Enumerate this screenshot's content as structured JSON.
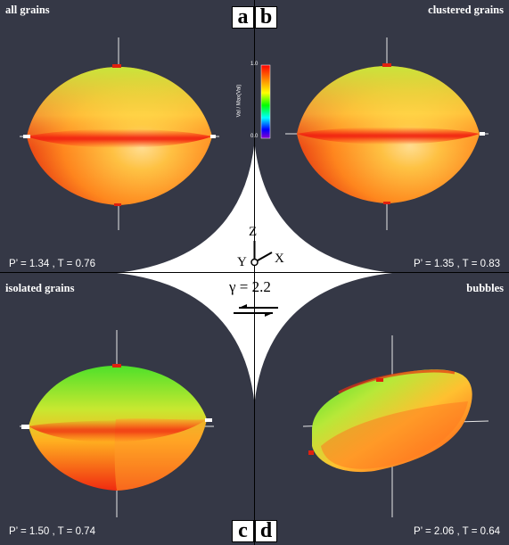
{
  "panels": {
    "a": {
      "letter": "a",
      "title": "all grains",
      "stats": "P’ = 1.34 , T = 0.76"
    },
    "b": {
      "letter": "b",
      "title": "clustered grains",
      "stats": "P’ = 1.35 , T = 0.83"
    },
    "c": {
      "letter": "c",
      "title": "isolated grains",
      "stats": "P’ = 1.50 , T = 0.74"
    },
    "d": {
      "letter": "d",
      "title": "bubbles",
      "stats": "P’ = 2.06 , T = 0.64"
    }
  },
  "colorbar": {
    "max_label": "1.0",
    "min_label": "0.0",
    "title": "Val / Max(Val)",
    "stops": [
      "#ff0000",
      "#ff8800",
      "#ffff00",
      "#00ff00",
      "#00ffff",
      "#0000ff",
      "#8800cc"
    ]
  },
  "center": {
    "axis_z": "Z",
    "axis_y": "Y",
    "axis_x": "X",
    "gamma_label": "γ = 2.2",
    "shear_icon": "shear-sense-arrows-icon"
  },
  "colors": {
    "panel_bg": "#353846",
    "divider": "#000000",
    "center_shape": "#ffffff",
    "text": "#ffffff"
  }
}
